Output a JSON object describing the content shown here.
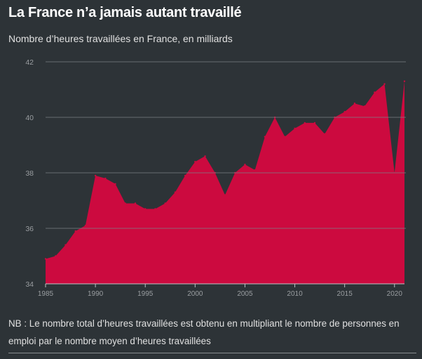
{
  "header": {
    "title": "La France n’a jamais autant travaillé",
    "subtitle": "Nombre d’heures travaillées en France, en milliards"
  },
  "footer": {
    "note": "NB : Le nombre total d’heures travaillées est obtenu en multipliant le nombre de personnes en emploi par le nombre moyen d’heures travaillées"
  },
  "colors": {
    "background": "#2d3337",
    "area_fill": "#cc0a3f",
    "gridline": "#7c8185",
    "tick_text": "#9a9ea1"
  },
  "chart_data": {
    "type": "area",
    "title": "La France n’a jamais autant travaillé",
    "subtitle": "Nombre d’heures travaillées en France, en milliards",
    "xlabel": "",
    "ylabel": "",
    "xlim": [
      1985,
      2021
    ],
    "ylim": [
      34,
      42
    ],
    "x_ticks": [
      1985,
      1990,
      1995,
      2000,
      2005,
      2010,
      2015,
      2020
    ],
    "y_ticks": [
      34,
      36,
      38,
      40,
      42
    ],
    "grid": "horizontal",
    "x": [
      1985,
      1986,
      1987,
      1988,
      1989,
      1990,
      1991,
      1992,
      1993,
      1994,
      1995,
      1996,
      1997,
      1998,
      1999,
      2000,
      2001,
      2002,
      2003,
      2004,
      2005,
      2006,
      2007,
      2008,
      2009,
      2010,
      2011,
      2012,
      2013,
      2014,
      2015,
      2016,
      2017,
      2018,
      2019,
      2020,
      2021
    ],
    "values": [
      34.9,
      35.0,
      35.4,
      35.9,
      36.1,
      37.9,
      37.8,
      37.6,
      36.9,
      36.9,
      36.7,
      36.7,
      36.9,
      37.3,
      37.9,
      38.4,
      38.6,
      38.0,
      37.2,
      38.0,
      38.3,
      38.1,
      39.3,
      40.0,
      39.3,
      39.6,
      39.8,
      39.8,
      39.4,
      40.0,
      40.2,
      40.5,
      40.4,
      40.9,
      41.2,
      38.0,
      41.3
    ]
  }
}
